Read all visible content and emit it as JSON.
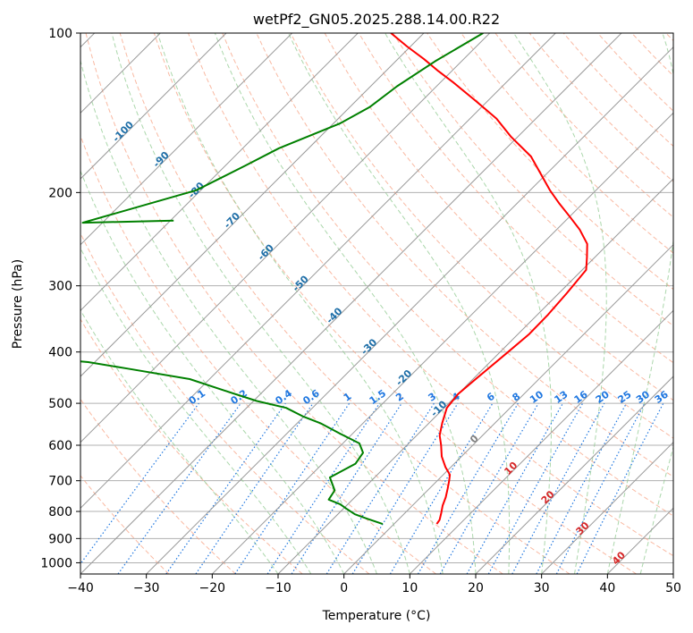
{
  "chart_data": {
    "type": "line",
    "subtype": "skew-t log-p diagram",
    "title": "wetPf2_GN05.2025.288.14.00.R22",
    "xlabel": "Temperature (°C)",
    "ylabel": "Pressure (hPa)",
    "xlim": [
      -40,
      50
    ],
    "ylim": [
      1050,
      100
    ],
    "y_scale": "log",
    "grid": true,
    "x_ticks": [
      -40,
      -30,
      -20,
      -10,
      0,
      10,
      20,
      30,
      40,
      50
    ],
    "x_tick_labels": [
      "−40",
      "−30",
      "−20",
      "−10",
      "0",
      "10",
      "20",
      "30",
      "40",
      "50"
    ],
    "y_ticks": [
      1000,
      900,
      800,
      700,
      600,
      500,
      400,
      300,
      200,
      100
    ],
    "y_tick_labels": [
      "1000",
      "900",
      "800",
      "700",
      "600",
      "500",
      "400",
      "300",
      "200",
      "100"
    ],
    "colors": {
      "temperature": "#ff0000",
      "dewpoint": "#008000",
      "isotherm": "#999999",
      "dry_adiabat": "#f7a283",
      "moist_adiabat": "#8fc98f",
      "mixing_ratio": "#1f77e0",
      "freezing_level_label": "#808080",
      "isotherm_label": "#1f6fa8",
      "warm_label": "#d62728"
    },
    "series": [
      {
        "role": "temperature",
        "x": [
          6.5,
          6.3,
          5.5,
          4.6,
          3.8,
          2.8,
          1.8,
          1.0,
          -0.8,
          -3.0,
          -4.8,
          -6.5,
          -8.0,
          -9.6,
          -10.0,
          -9.6,
          -8.8,
          -8.3,
          -8.4,
          -8.8,
          -9.4,
          -11.2,
          -13.2,
          -16.5,
          -20.0,
          -23.5,
          -27.0,
          -31.0,
          -35.0,
          -41.0,
          -46.0,
          -52.0,
          -58.0,
          -62.0,
          -66.0,
          -70.5,
          -75.0
        ],
        "y": [
          845,
          830,
          805,
          780,
          752,
          725,
          700,
          682,
          660,
          630,
          600,
          575,
          545,
          510,
          480,
          450,
          400,
          370,
          340,
          310,
          280,
          265,
          250,
          235,
          222,
          210,
          198,
          184,
          171,
          157,
          145,
          134,
          124,
          118,
          112,
          106,
          100
        ]
      },
      {
        "role": "dewpoint",
        "x": [
          -1.7,
          -5.0,
          -7.4,
          -9.6,
          -11.2,
          -13.6,
          -14.1,
          -16.8,
          -15.0,
          -15.5,
          -17.5,
          -22.0,
          -26.5,
          -30.0,
          -34.0,
          -39.5,
          -46.0,
          -53.0,
          -64.0,
          -71.0,
          -87.0,
          -106.0,
          -138.0
        ],
        "y": [
          845,
          825,
          810,
          790,
          775,
          760,
          730,
          690,
          650,
          620,
          595,
          570,
          545,
          530,
          510,
          495,
          473,
          450,
          430,
          418,
          403,
          396,
          390
        ]
      },
      {
        "role": "dewpoint_upper",
        "x": [
          -79.5,
          -93.0,
          -80.7,
          -77.0,
          -74.5,
          -69.0,
          -67.0,
          -66.0,
          -64.0,
          -61.0
        ],
        "y": [
          226,
          228,
          198,
          178,
          165,
          148,
          138,
          126,
          113,
          100
        ]
      }
    ],
    "isotherm_labels": [
      "-100",
      "-90",
      "-80",
      "-70",
      "-60",
      "-50",
      "-40",
      "-30",
      "-20",
      "-10",
      "0",
      "10",
      "20",
      "30",
      "40"
    ],
    "mixing_ratio_labels": [
      "0.1",
      "0.2",
      "0.4",
      "0.6",
      "1",
      "1.5",
      "2",
      "3",
      "4",
      "6",
      "8",
      "10",
      "13",
      "16",
      "20",
      "25",
      "30",
      "36"
    ]
  }
}
